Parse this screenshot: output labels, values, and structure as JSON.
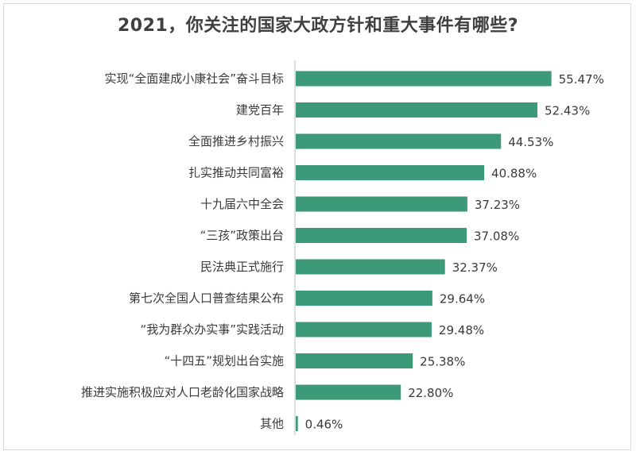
{
  "chart_data": {
    "type": "bar",
    "orientation": "horizontal",
    "title": "2021，你关注的国家大政方针和重大事件有哪些?",
    "xlabel": "",
    "ylabel": "",
    "categories": [
      "实现“全面建成小康社会”奋斗目标",
      "建党百年",
      "全面推进乡村振兴",
      "扎实推动共同富裕",
      "十九届六中全会",
      "“三孩”政策出台",
      "民法典正式施行",
      "第七次全国人口普查结果公布",
      "“我为群众办实事”实践活动",
      "“十四五”规划出台实施",
      "推进实施积极应对人口老龄化国家战略",
      "其他"
    ],
    "values": [
      55.47,
      52.43,
      44.53,
      40.88,
      37.23,
      37.08,
      32.37,
      29.64,
      29.48,
      25.38,
      22.8,
      0.46
    ],
    "value_labels": [
      "55.47%",
      "52.43%",
      "44.53%",
      "40.88%",
      "37.23%",
      "37.08%",
      "32.37%",
      "29.64%",
      "29.48%",
      "25.38%",
      "22.80%",
      "0.46%"
    ],
    "xlim": [
      0,
      60
    ],
    "grid": false,
    "legend": "none",
    "bar_color": "#3d9a78",
    "axis_color": "#bfbfbf"
  }
}
